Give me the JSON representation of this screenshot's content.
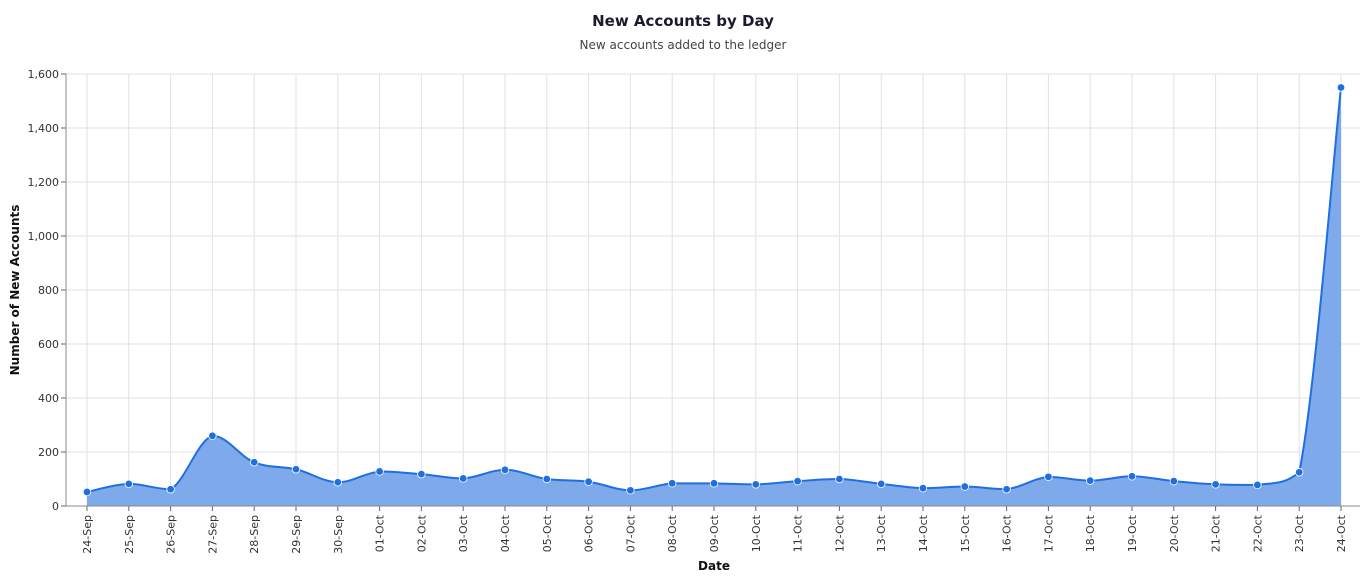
{
  "chart_data": {
    "type": "area",
    "title": "New Accounts by Day",
    "subtitle": "New accounts added to the ledger",
    "xlabel": "Date",
    "ylabel": "Number of New Accounts",
    "ylim": [
      0,
      1600
    ],
    "yticks": [
      0,
      200,
      400,
      600,
      800,
      1000,
      1200,
      1400,
      1600
    ],
    "ytick_labels": [
      "0",
      "200",
      "400",
      "600",
      "800",
      "1,000",
      "1,200",
      "1,400",
      "1,600"
    ],
    "grid": true,
    "categories": [
      "24-Sep",
      "25-Sep",
      "26-Sep",
      "27-Sep",
      "28-Sep",
      "29-Sep",
      "30-Sep",
      "01-Oct",
      "02-Oct",
      "03-Oct",
      "04-Oct",
      "05-Oct",
      "06-Oct",
      "07-Oct",
      "08-Oct",
      "09-Oct",
      "10-Oct",
      "11-Oct",
      "12-Oct",
      "13-Oct",
      "14-Oct",
      "15-Oct",
      "16-Oct",
      "17-Oct",
      "18-Oct",
      "19-Oct",
      "20-Oct",
      "21-Oct",
      "22-Oct",
      "23-Oct",
      "24-Oct"
    ],
    "values": [
      52,
      82,
      62,
      260,
      162,
      136,
      88,
      128,
      118,
      102,
      134,
      100,
      90,
      58,
      84,
      84,
      80,
      92,
      100,
      82,
      66,
      72,
      62,
      108,
      94,
      110,
      92,
      80,
      78,
      125,
      1550
    ],
    "colors": {
      "line": "#1f6fe0",
      "fill": "#7ea9ea",
      "grid": "#e2e2e2"
    }
  }
}
